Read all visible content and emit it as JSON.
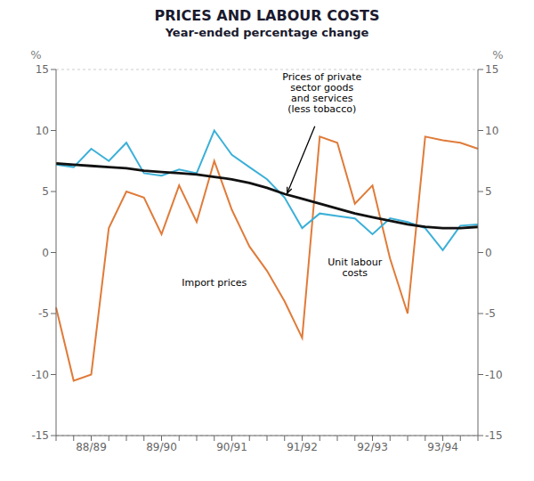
{
  "chart_data": {
    "type": "line",
    "title": "PRICES AND LABOUR COSTS",
    "subtitle": "Year-ended percentage change",
    "categories": [
      null,
      null,
      "88/89",
      null,
      null,
      null,
      "89/90",
      null,
      null,
      null,
      "90/91",
      null,
      null,
      null,
      "91/92",
      null,
      null,
      null,
      "92/93",
      null,
      null,
      null,
      "93/94",
      null,
      null
    ],
    "series": [
      {
        "name": "Import prices",
        "color": "#e07b39",
        "values": [
          -4.5,
          -10.5,
          -10.0,
          2.0,
          5.0,
          4.5,
          1.5,
          5.5,
          2.5,
          7.5,
          3.5,
          0.5,
          -1.5,
          -4.0,
          -7.0,
          9.5,
          9.0,
          4.0,
          5.5,
          -0.5,
          -5.0,
          9.5,
          9.2,
          9.0,
          8.5
        ]
      },
      {
        "name": "Prices of private\nsector goods\nand services\n(less tobacco)",
        "color": "#3cb0d8",
        "values": [
          7.2,
          7.0,
          8.5,
          7.5,
          9.0,
          6.5,
          6.3,
          6.8,
          6.5,
          10.0,
          8.0,
          7.0,
          6.0,
          4.5,
          2.0,
          3.2,
          3.0,
          2.8,
          1.5,
          2.8,
          2.5,
          2.0,
          0.2,
          2.2,
          2.3
        ]
      },
      {
        "name": "Unit labour\ncosts",
        "color": "#111111",
        "values": [
          7.3,
          7.2,
          7.1,
          7.0,
          6.9,
          6.7,
          6.6,
          6.5,
          6.4,
          6.2,
          6.0,
          5.7,
          5.3,
          4.8,
          4.4,
          4.0,
          3.6,
          3.2,
          2.9,
          2.6,
          2.3,
          2.1,
          2.0,
          2.0,
          2.1
        ]
      }
    ],
    "ylim": [
      -15,
      15
    ],
    "yticks": [
      -15,
      -10,
      -5,
      0,
      5,
      10,
      15
    ],
    "y2lim": [
      -15,
      15
    ],
    "y2ticks": [
      -15,
      -10,
      -5,
      0,
      5,
      10,
      15
    ],
    "ylabel": "%",
    "y2label": "%",
    "grid": true
  }
}
